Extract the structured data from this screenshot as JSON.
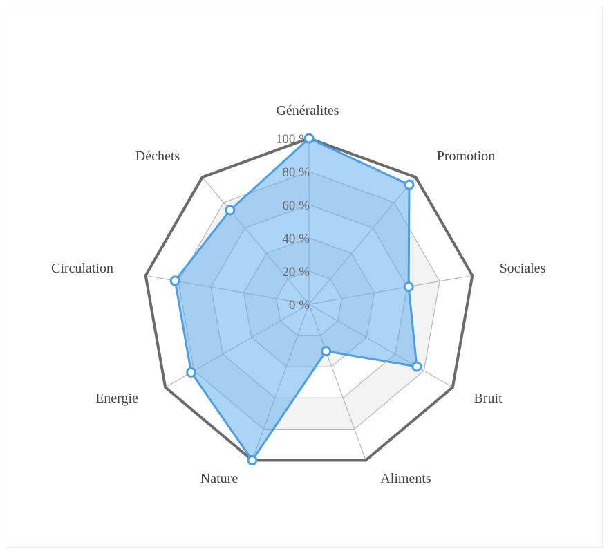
{
  "chart_data": {
    "type": "radar",
    "title": "",
    "categories": [
      "Généralites",
      "Promotion",
      "Sociales",
      "Bruit",
      "Aliments",
      "Nature",
      "Energie",
      "Circulation",
      "Déchets"
    ],
    "series": [
      {
        "name": "",
        "values": [
          100,
          94,
          61,
          75,
          30,
          100,
          82,
          82,
          74
        ],
        "color": "#4a9fe8",
        "fill": "rgba(90,170,240,0.5)"
      }
    ],
    "rlim": [
      0,
      100
    ],
    "ticks": [
      {
        "value": 0,
        "label": "0 %"
      },
      {
        "value": 20,
        "label": "20 %"
      },
      {
        "value": 40,
        "label": "40 %"
      },
      {
        "value": 60,
        "label": "60 %"
      },
      {
        "value": 80,
        "label": "80 %"
      },
      {
        "value": 100,
        "label": "100 %"
      }
    ],
    "grid": true,
    "legend": "none",
    "colors": {
      "outer_border": "#6b6b6b",
      "grid_line": "#b9b9b9",
      "band_fill": "#f3f3f3",
      "label_text": "#444444",
      "tick_text": "#666666"
    }
  }
}
